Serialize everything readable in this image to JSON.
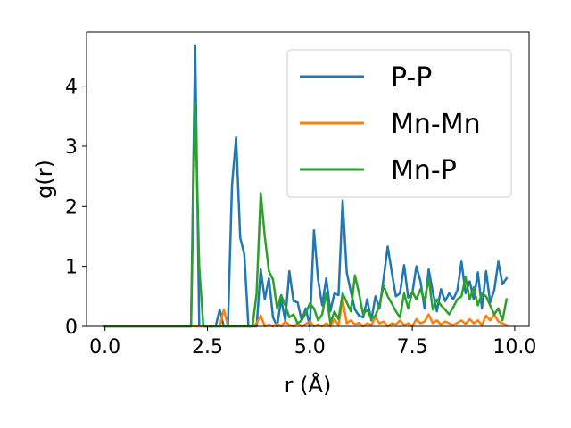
{
  "chart_data": {
    "type": "line",
    "title": "",
    "xlabel": "r (Å)",
    "ylabel": "g(r)",
    "xlim": [
      -0.45,
      10.35
    ],
    "ylim": [
      0,
      4.9
    ],
    "xticks": [
      0.0,
      2.5,
      5.0,
      7.5,
      10.0
    ],
    "xtick_labels": [
      "0.0",
      "2.5",
      "5.0",
      "7.5",
      "10.0"
    ],
    "yticks": [
      0,
      1,
      2,
      3,
      4
    ],
    "ytick_labels": [
      "0",
      "1",
      "2",
      "3",
      "4"
    ],
    "grid": false,
    "legend_position": "top-right",
    "series": [
      {
        "name": "P-P",
        "color": "#1f77b4",
        "x": [
          0.0,
          2.1,
          2.2,
          2.3,
          2.7,
          2.8,
          2.9,
          3.0,
          3.1,
          3.2,
          3.3,
          3.4,
          3.5,
          3.6,
          3.7,
          3.8,
          3.9,
          4.0,
          4.1,
          4.2,
          4.3,
          4.4,
          4.5,
          4.6,
          4.7,
          4.8,
          4.9,
          5.0,
          5.1,
          5.2,
          5.3,
          5.4,
          5.5,
          5.6,
          5.7,
          5.8,
          5.9,
          6.0,
          6.1,
          6.2,
          6.3,
          6.4,
          6.5,
          6.6,
          6.7,
          6.8,
          6.9,
          7.0,
          7.1,
          7.2,
          7.3,
          7.4,
          7.5,
          7.6,
          7.7,
          7.8,
          7.9,
          8.0,
          8.1,
          8.2,
          8.3,
          8.4,
          8.5,
          8.6,
          8.7,
          8.8,
          8.9,
          9.0,
          9.1,
          9.2,
          9.3,
          9.4,
          9.5,
          9.6,
          9.7,
          9.8
        ],
        "y": [
          0.0,
          0.0,
          4.68,
          0.0,
          0.0,
          0.28,
          0.0,
          0.0,
          2.35,
          3.15,
          1.48,
          1.2,
          0.0,
          0.0,
          0.0,
          0.95,
          0.45,
          0.8,
          0.15,
          0.0,
          0.45,
          0.1,
          0.92,
          0.42,
          0.4,
          0.1,
          0.3,
          0.0,
          1.6,
          0.78,
          0.35,
          0.8,
          0.25,
          0.55,
          0.52,
          2.1,
          0.9,
          0.58,
          0.28,
          0.18,
          0.15,
          0.45,
          0.1,
          0.5,
          0.3,
          0.8,
          1.33,
          0.9,
          0.5,
          0.55,
          1.02,
          0.48,
          0.55,
          1.0,
          0.75,
          0.3,
          0.95,
          0.58,
          0.25,
          0.62,
          0.42,
          0.55,
          0.45,
          0.6,
          1.08,
          0.55,
          0.75,
          0.45,
          0.9,
          0.3,
          0.92,
          0.4,
          0.6,
          1.08,
          0.7,
          0.8
        ]
      },
      {
        "name": "Mn-Mn",
        "color": "#ff7f0e",
        "x": [
          0.0,
          2.7,
          2.8,
          2.9,
          3.0,
          3.1,
          3.6,
          3.7,
          3.8,
          3.9,
          4.0,
          4.1,
          4.2,
          4.3,
          4.4,
          4.5,
          4.6,
          4.7,
          4.8,
          4.9,
          5.0,
          5.1,
          5.2,
          5.3,
          5.4,
          5.5,
          5.6,
          5.7,
          5.8,
          5.9,
          6.0,
          6.1,
          6.2,
          6.3,
          6.4,
          6.5,
          6.6,
          6.7,
          6.8,
          6.9,
          7.0,
          7.1,
          7.2,
          7.3,
          7.4,
          7.5,
          7.6,
          7.7,
          7.8,
          7.9,
          8.0,
          8.1,
          8.2,
          8.3,
          8.4,
          8.5,
          8.6,
          8.7,
          8.8,
          8.9,
          9.0,
          9.1,
          9.2,
          9.3,
          9.4,
          9.5,
          9.6,
          9.7,
          9.8
        ],
        "y": [
          0.0,
          0.0,
          0.0,
          0.28,
          0.0,
          0.0,
          0.0,
          0.05,
          0.18,
          0.0,
          0.03,
          0.0,
          0.05,
          0.0,
          0.08,
          0.02,
          0.0,
          0.05,
          0.0,
          0.04,
          0.08,
          0.0,
          0.03,
          0.0,
          0.05,
          0.0,
          0.12,
          0.02,
          0.45,
          0.05,
          0.1,
          0.03,
          0.06,
          0.0,
          0.05,
          0.02,
          0.15,
          0.05,
          0.08,
          0.0,
          0.05,
          0.03,
          0.1,
          0.02,
          0.05,
          0.0,
          0.12,
          0.05,
          0.08,
          0.2,
          0.05,
          0.1,
          0.03,
          0.08,
          0.05,
          0.02,
          0.06,
          0.1,
          0.04,
          0.12,
          0.05,
          0.1,
          0.02,
          0.18,
          0.1,
          0.2,
          0.08,
          0.05,
          0.02
        ]
      },
      {
        "name": "Mn-P",
        "color": "#2ca02c",
        "x": [
          0.0,
          2.1,
          2.2,
          2.3,
          2.4,
          3.6,
          3.7,
          3.8,
          3.9,
          4.0,
          4.1,
          4.2,
          4.3,
          4.4,
          4.5,
          4.6,
          4.7,
          4.8,
          4.9,
          5.0,
          5.1,
          5.2,
          5.3,
          5.4,
          5.5,
          5.6,
          5.7,
          5.8,
          5.9,
          6.0,
          6.1,
          6.2,
          6.3,
          6.4,
          6.5,
          6.6,
          6.7,
          6.8,
          6.9,
          7.0,
          7.1,
          7.2,
          7.3,
          7.4,
          7.5,
          7.6,
          7.7,
          7.8,
          7.9,
          8.0,
          8.1,
          8.2,
          8.3,
          8.4,
          8.5,
          8.6,
          8.7,
          8.8,
          8.9,
          9.0,
          9.1,
          9.2,
          9.3,
          9.4,
          9.5,
          9.6,
          9.7,
          9.8
        ],
        "y": [
          0.0,
          0.0,
          3.72,
          1.0,
          0.0,
          0.0,
          0.55,
          2.22,
          1.5,
          0.92,
          0.78,
          0.3,
          0.52,
          0.35,
          0.15,
          0.2,
          0.05,
          0.1,
          0.22,
          0.38,
          0.3,
          0.1,
          0.2,
          0.55,
          0.05,
          0.25,
          0.12,
          0.55,
          0.4,
          0.25,
          0.85,
          0.55,
          0.2,
          0.28,
          0.12,
          0.18,
          0.35,
          0.68,
          0.5,
          0.38,
          0.25,
          0.15,
          0.55,
          0.3,
          0.58,
          0.45,
          0.62,
          0.42,
          0.8,
          0.28,
          0.45,
          0.35,
          0.28,
          0.2,
          0.32,
          0.45,
          0.5,
          0.82,
          0.45,
          0.65,
          0.35,
          0.55,
          0.5,
          0.35,
          0.2,
          0.3,
          0.1,
          0.45
        ]
      }
    ]
  }
}
